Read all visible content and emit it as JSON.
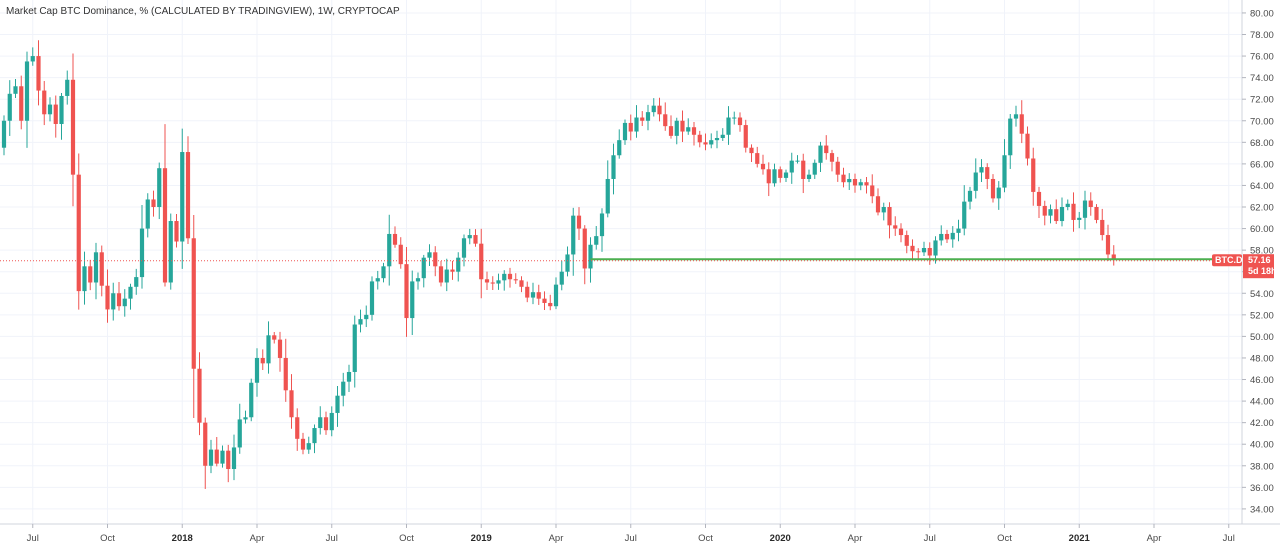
{
  "chart_data": {
    "type": "candlestick",
    "title": "Market Cap BTC Dominance, % (CALCULATED BY TRADINGVIEW), 1W, CRYPTOCAP",
    "ylim": [
      32.6,
      81.2
    ],
    "y_ticks": [
      "34.00",
      "36.00",
      "38.00",
      "40.00",
      "42.00",
      "44.00",
      "46.00",
      "48.00",
      "50.00",
      "52.00",
      "54.00",
      "56.00",
      "58.00",
      "60.00",
      "62.00",
      "64.00",
      "66.00",
      "68.00",
      "70.00",
      "72.00",
      "74.00",
      "76.00",
      "78.00",
      "80.00"
    ],
    "x_ticks": [
      {
        "label": "Jul",
        "bold": false,
        "week": 5
      },
      {
        "label": "Oct",
        "bold": false,
        "week": 18
      },
      {
        "label": "2018",
        "bold": true,
        "week": 31
      },
      {
        "label": "Apr",
        "bold": false,
        "week": 44
      },
      {
        "label": "Jul",
        "bold": false,
        "week": 57
      },
      {
        "label": "Oct",
        "bold": false,
        "week": 70
      },
      {
        "label": "2019",
        "bold": true,
        "week": 83
      },
      {
        "label": "Apr",
        "bold": false,
        "week": 96
      },
      {
        "label": "Jul",
        "bold": false,
        "week": 109
      },
      {
        "label": "Oct",
        "bold": false,
        "week": 122
      },
      {
        "label": "2020",
        "bold": true,
        "week": 135
      },
      {
        "label": "Apr",
        "bold": false,
        "week": 148
      },
      {
        "label": "Jul",
        "bold": false,
        "week": 161
      },
      {
        "label": "Oct",
        "bold": false,
        "week": 174
      },
      {
        "label": "2021",
        "bold": true,
        "week": 187
      },
      {
        "label": "Apr",
        "bold": false,
        "week": 200
      },
      {
        "label": "Jul",
        "bold": false,
        "week": 213
      }
    ],
    "series_closes": [
      70.0,
      72.5,
      73.2,
      70.0,
      75.5,
      76.0,
      72.8,
      70.6,
      71.5,
      69.7,
      72.3,
      73.8,
      65.0,
      54.2,
      56.5,
      55.0,
      57.8,
      54.7,
      52.5,
      54.0,
      52.8,
      53.5,
      54.6,
      55.5,
      60.0,
      62.7,
      62.0,
      65.6,
      55.0,
      60.7,
      58.8,
      67.1,
      59.1,
      47.0,
      42.0,
      38.0,
      39.5,
      38.2,
      39.4,
      37.7,
      39.7,
      42.3,
      42.5,
      45.7,
      48.0,
      47.5,
      50.1,
      49.7,
      48.0,
      45.0,
      42.5,
      40.5,
      39.5,
      40.1,
      41.5,
      42.5,
      41.3,
      42.9,
      44.5,
      45.8,
      46.7,
      51.1,
      51.6,
      52.0,
      55.1,
      55.4,
      56.5,
      59.5,
      58.5,
      56.7,
      51.7,
      55.1,
      55.4,
      57.3,
      57.8,
      56.5,
      55.0,
      56.2,
      56.0,
      57.3,
      59.1,
      59.4,
      58.6,
      55.3,
      55.0,
      54.9,
      55.2,
      55.8,
      55.3,
      55.2,
      54.6,
      53.6,
      54.1,
      53.5,
      53.1,
      52.8,
      54.8,
      56.0,
      57.6,
      61.2,
      60.0,
      56.3,
      58.5,
      59.3,
      61.4,
      64.6,
      66.8,
      68.2,
      69.8,
      69.0,
      70.3,
      70.0,
      70.8,
      71.4,
      70.6,
      69.5,
      68.6,
      70.0,
      69.0,
      69.4,
      68.7,
      68.0,
      67.8,
      68.2,
      68.4,
      68.7,
      70.3,
      70.3,
      69.6,
      67.5,
      67.0,
      66.0,
      65.5,
      64.2,
      65.5,
      64.7,
      65.2,
      66.3,
      66.3,
      64.6,
      65.0,
      66.1,
      67.7,
      67.0,
      66.2,
      65.0,
      64.3,
      64.6,
      64.0,
      64.3,
      64.0,
      63.0,
      61.5,
      62.0,
      60.3,
      60.0,
      59.4,
      58.4,
      57.9,
      57.8,
      58.2,
      57.5,
      58.9,
      59.5,
      59.0,
      59.6,
      60.0,
      62.5,
      63.5,
      65.2,
      65.7,
      64.6,
      62.8,
      63.8,
      66.8,
      70.2,
      70.6,
      68.8,
      66.5,
      63.4,
      62.1,
      61.2,
      61.8,
      60.7,
      62.0,
      62.3,
      60.8,
      61.0,
      62.6,
      62.0,
      60.8,
      59.4,
      57.6,
      57.16
    ],
    "horizontal_line": {
      "value": 57.16
    },
    "current_price": {
      "symbol": "BTC.D",
      "value": "57.16",
      "countdown": "5d 18h"
    },
    "colors": {
      "up": "#26a69a",
      "down": "#ef5350",
      "line": "#4caf50",
      "grid": "#f0f3fa"
    }
  }
}
